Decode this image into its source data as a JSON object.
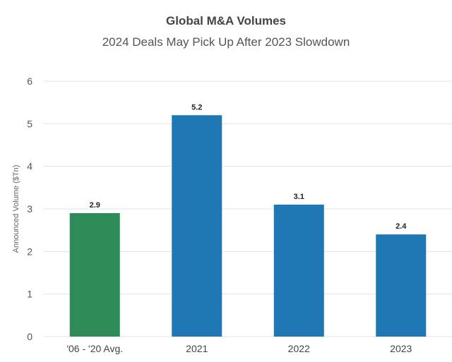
{
  "chart_data": {
    "type": "bar",
    "title": "Global M&A Volumes",
    "subtitle": "2024 Deals May Pick Up After 2023 Slowdown",
    "xlabel": "",
    "ylabel": "Announced Volume ($Tn)",
    "categories": [
      "'06 - '20 Avg.",
      "2021",
      "2022",
      "2023"
    ],
    "values": [
      2.9,
      5.2,
      3.1,
      2.4
    ],
    "data_labels": [
      "2.9",
      "5.2",
      "3.1",
      "2.4"
    ],
    "bar_colors": [
      "#2e8b57",
      "#1f77b4",
      "#1f77b4",
      "#1f77b4"
    ],
    "ylim": [
      0,
      6
    ],
    "yticks": [
      0,
      1,
      2,
      3,
      4,
      5,
      6
    ],
    "grid": true,
    "legend": "none"
  }
}
